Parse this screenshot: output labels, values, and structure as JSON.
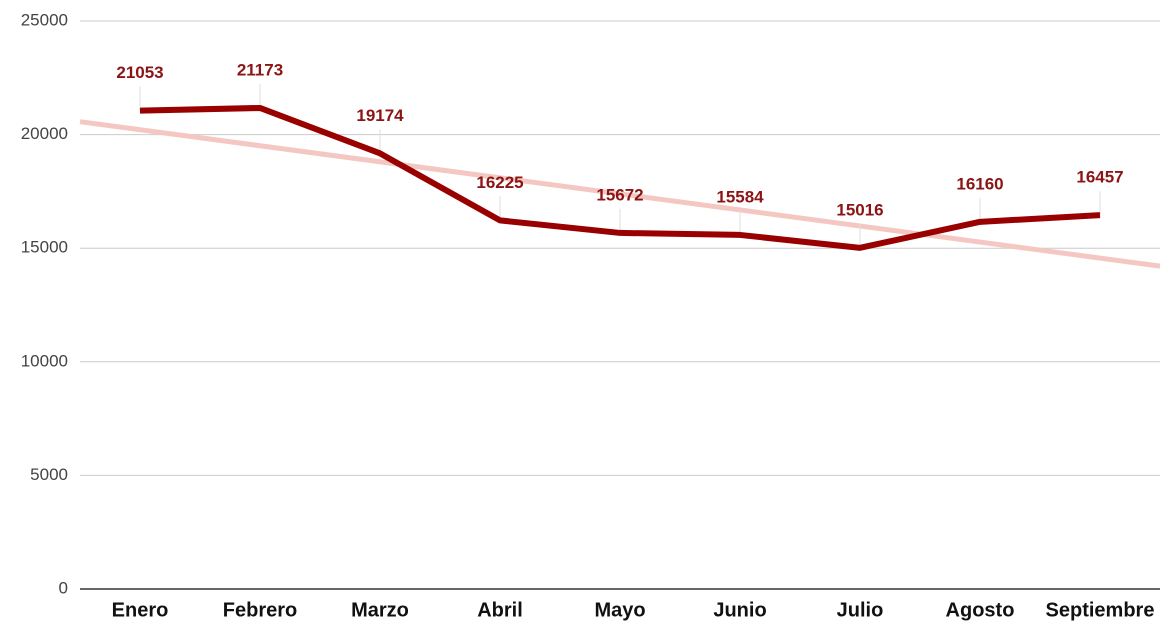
{
  "chart_data": {
    "type": "line",
    "categories": [
      "Enero",
      "Febrero",
      "Marzo",
      "Abril",
      "Mayo",
      "Junio",
      "Julio",
      "Agosto",
      "Septiembre"
    ],
    "values": [
      21053,
      21173,
      19174,
      16225,
      15672,
      15584,
      15016,
      16160,
      16457
    ],
    "color": "#990000",
    "trendline": true,
    "trendline_color": "#f4c7c3",
    "ylim": [
      0,
      25000
    ],
    "yticks": [
      0,
      5000,
      10000,
      15000,
      20000,
      25000
    ],
    "grid": true
  }
}
